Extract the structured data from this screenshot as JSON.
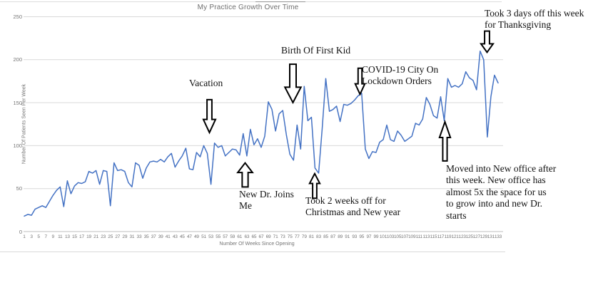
{
  "chart_data": {
    "type": "line",
    "title": "My Practice Growth Over Time",
    "xlabel": "Number Of Weeks Since Opening",
    "ylabel": "Number  Of Patients Seen  Per Week",
    "x_range": [
      1,
      133
    ],
    "x_tick_start": 1,
    "x_tick_step": 2,
    "x_tick_end": 133,
    "y_ticks": [
      0,
      50,
      100,
      150,
      200,
      250
    ],
    "ylim": [
      0,
      250
    ],
    "grid": true,
    "legend": "none",
    "line_color": "#4472C4",
    "grid_color": "#D9D9D9",
    "axis_line_color": "#BFBFBF",
    "text_color": "#757575",
    "values": [
      18,
      20,
      19,
      26,
      28,
      30,
      28,
      35,
      42,
      48,
      52,
      29,
      59,
      44,
      53,
      57,
      56,
      58,
      70,
      68,
      71,
      55,
      71,
      70,
      30,
      80,
      71,
      72,
      70,
      57,
      52,
      80,
      77,
      62,
      74,
      81,
      82,
      81,
      84,
      81,
      87,
      91,
      75,
      82,
      88,
      97,
      73,
      72,
      92,
      87,
      100,
      91,
      55,
      103,
      98,
      100,
      88,
      92,
      96,
      95,
      89,
      114,
      88,
      119,
      101,
      108,
      98,
      111,
      151,
      142,
      117,
      137,
      141,
      113,
      90,
      83,
      124,
      96,
      169,
      129,
      133,
      74,
      68,
      120,
      178,
      140,
      142,
      146,
      128,
      148,
      147,
      149,
      153,
      158,
      161,
      96,
      85,
      93,
      92,
      104,
      107,
      124,
      107,
      105,
      117,
      112,
      105,
      108,
      111,
      126,
      124,
      131,
      156,
      148,
      135,
      132,
      157,
      129,
      178,
      168,
      170,
      168,
      172,
      186,
      179,
      176,
      165,
      210,
      200,
      110,
      157,
      182,
      173
    ],
    "annotations": [
      {
        "id": "vacation",
        "text": "Vacation",
        "arrow": "down",
        "week": 53
      },
      {
        "id": "birth",
        "text": "Birth Of First Kid",
        "arrow": "down",
        "week": 75
      },
      {
        "id": "covid",
        "text": "COVID-19 City On\nLockdown Orders",
        "arrow": "down",
        "week": 95
      },
      {
        "id": "thanksgiving",
        "text": "Took 3 days off this week\nfor Thanksgiving",
        "arrow": "down",
        "week": 129
      },
      {
        "id": "newdr",
        "text": "New Dr. Joins\nMe",
        "arrow": "up",
        "week": 63
      },
      {
        "id": "christmas",
        "text": "Took 2 weeks off for\nChristmas and New year",
        "arrow": "up",
        "week": 82
      },
      {
        "id": "moved",
        "text": "Moved into New office after\nthis week. New office has\nalmost 5x the space for us\nto grow into and new Dr.\nstarts",
        "arrow": "up",
        "week": 118
      }
    ]
  }
}
